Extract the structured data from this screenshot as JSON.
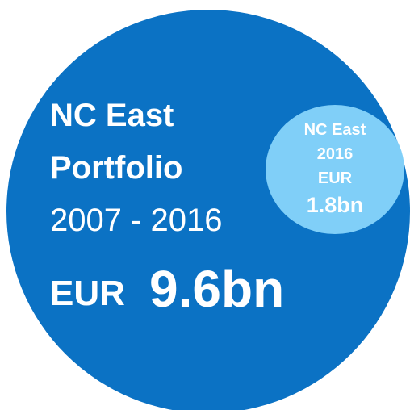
{
  "main": {
    "lines": [
      "NC East",
      "Portfolio",
      "2007 - 2016"
    ],
    "currency": "EUR",
    "amount": "9.6bn"
  },
  "inset": {
    "lines": [
      "NC East",
      "2016",
      "EUR"
    ],
    "amount": "1.8bn"
  }
}
